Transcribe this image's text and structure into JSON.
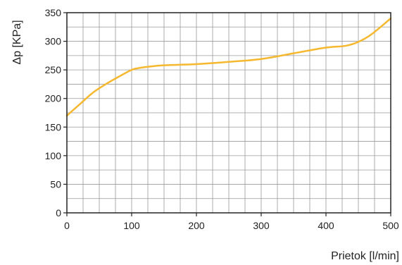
{
  "chart_data": {
    "type": "line",
    "title": "",
    "xlabel": "Prietok [l/min]",
    "ylabel": "Δp [KPa]",
    "xlim": [
      0,
      500
    ],
    "ylim": [
      0,
      350
    ],
    "x_ticks": [
      0,
      100,
      200,
      300,
      400,
      500
    ],
    "y_ticks": [
      0,
      50,
      100,
      150,
      200,
      250,
      300,
      350
    ],
    "x_grid_step": 25,
    "y_grid_step": 25,
    "grid": true,
    "line_color": "#F5B82E",
    "grid_color": "#999999",
    "series": [
      {
        "x": [
          0,
          20,
          40,
          60,
          80,
          100,
          110,
          130,
          150,
          200,
          250,
          300,
          350,
          400,
          430,
          450,
          470,
          500
        ],
        "y": [
          170,
          190,
          210,
          225,
          238,
          250,
          253,
          256,
          258,
          260,
          264,
          269,
          279,
          289,
          292,
          299,
          312,
          340
        ]
      }
    ]
  }
}
